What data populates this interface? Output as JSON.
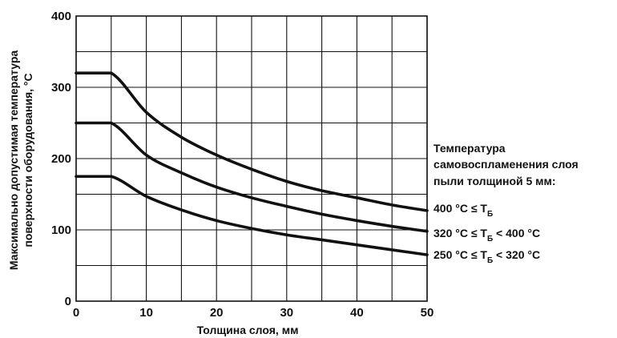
{
  "chart_data": {
    "type": "line",
    "title": "",
    "xlabel": "Толщина слоя, мм",
    "ylabel_lines": [
      "Максимально допустимая температура",
      "поверхности оборудования, °С"
    ],
    "xlim": [
      0,
      50
    ],
    "ylim": [
      0,
      400
    ],
    "x_ticks": [
      "0",
      "10",
      "20",
      "30",
      "40",
      "50"
    ],
    "y_ticks": [
      "0",
      "100",
      "200",
      "300",
      "400"
    ],
    "grid": true,
    "legend_title_lines": [
      "Температура",
      "самовоспламенения слоя",
      "пыли толщиной 5 мм:"
    ],
    "series": [
      {
        "name": "400 °С ≤ T",
        "subscript": "Б",
        "x": [
          0,
          5,
          10,
          15,
          20,
          25,
          30,
          35,
          40,
          45,
          50
        ],
        "y": [
          320,
          320,
          265,
          230,
          205,
          185,
          168,
          155,
          145,
          135,
          127
        ]
      },
      {
        "name": "320 °С ≤ T",
        "subscript": "Б",
        "name_suffix": " < 400 °С",
        "x": [
          0,
          5,
          10,
          15,
          20,
          25,
          30,
          35,
          40,
          45,
          50
        ],
        "y": [
          250,
          250,
          205,
          180,
          160,
          145,
          133,
          122,
          113,
          105,
          98
        ]
      },
      {
        "name": "250 °С ≤ T",
        "subscript": "Б",
        "name_suffix": " < 320 °С",
        "x": [
          0,
          5,
          10,
          15,
          20,
          25,
          30,
          35,
          40,
          45,
          50
        ],
        "y": [
          175,
          175,
          147,
          128,
          113,
          102,
          93,
          86,
          79,
          72,
          65
        ]
      }
    ]
  }
}
